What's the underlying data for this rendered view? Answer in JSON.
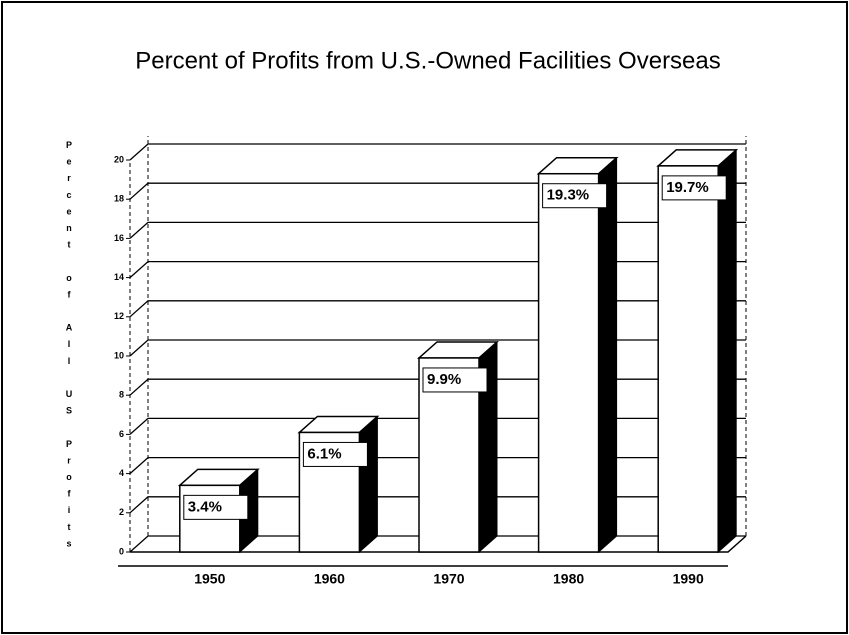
{
  "chart_data": {
    "type": "bar3d",
    "title": "Percent of Profits from U.S.-Owned Facilities Overseas",
    "y_label": "Percent of All US Profits",
    "categories": [
      "1950",
      "1960",
      "1970",
      "1980",
      "1990"
    ],
    "values": [
      3.4,
      6.1,
      9.9,
      19.3,
      19.7
    ],
    "value_labels": [
      "3.4%",
      "6.1%",
      "9.9%",
      "19.3%",
      "19.7%"
    ],
    "color": "#ffffff",
    "side_color": "#000000",
    "ylim": [
      0,
      20
    ],
    "yticks": [
      0,
      2,
      4,
      6,
      8,
      10,
      12,
      14,
      16,
      18,
      20
    ],
    "grid": true
  }
}
